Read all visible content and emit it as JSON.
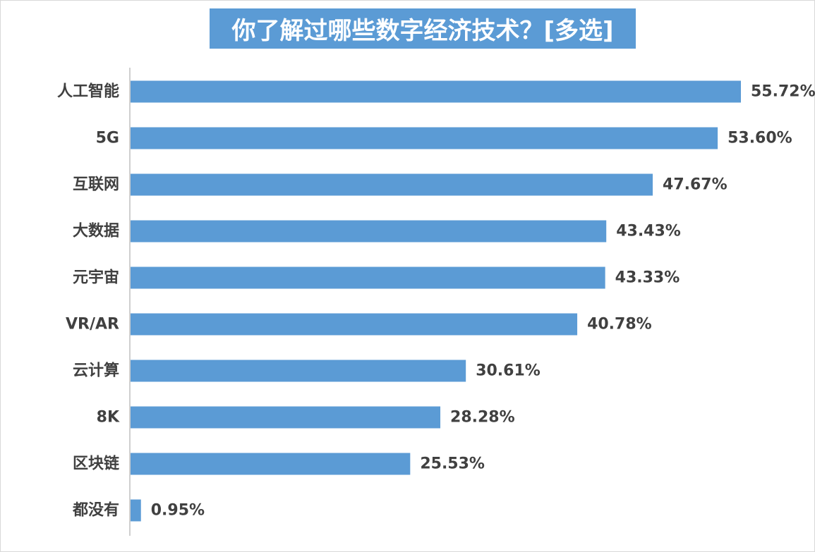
{
  "chart_data": {
    "type": "bar",
    "orientation": "horizontal",
    "title": "你了解过哪些数字经济技术？[多选]",
    "categories": [
      "人工智能",
      "5G",
      "互联网",
      "大数据",
      "元宇宙",
      "VR/AR",
      "云计算",
      "8K",
      "区块链",
      "都没有"
    ],
    "values": [
      55.72,
      53.6,
      47.67,
      43.43,
      43.33,
      40.78,
      30.61,
      28.28,
      25.53,
      0.95
    ],
    "value_labels": [
      "55.72%",
      "53.60%",
      "47.67%",
      "43.43%",
      "43.33%",
      "40.78%",
      "30.61%",
      "28.28%",
      "25.53%",
      "0.95%"
    ],
    "unit": "%",
    "xlim": [
      0,
      60
    ],
    "xlabel": "",
    "ylabel": "",
    "grid": false,
    "legend": "none",
    "colors": {
      "bar": "#5b9bd5",
      "title_bg": "#5b9bd5",
      "title_text": "#ffffff",
      "label_text": "#404040",
      "axis": "#bfbfbf"
    }
  }
}
